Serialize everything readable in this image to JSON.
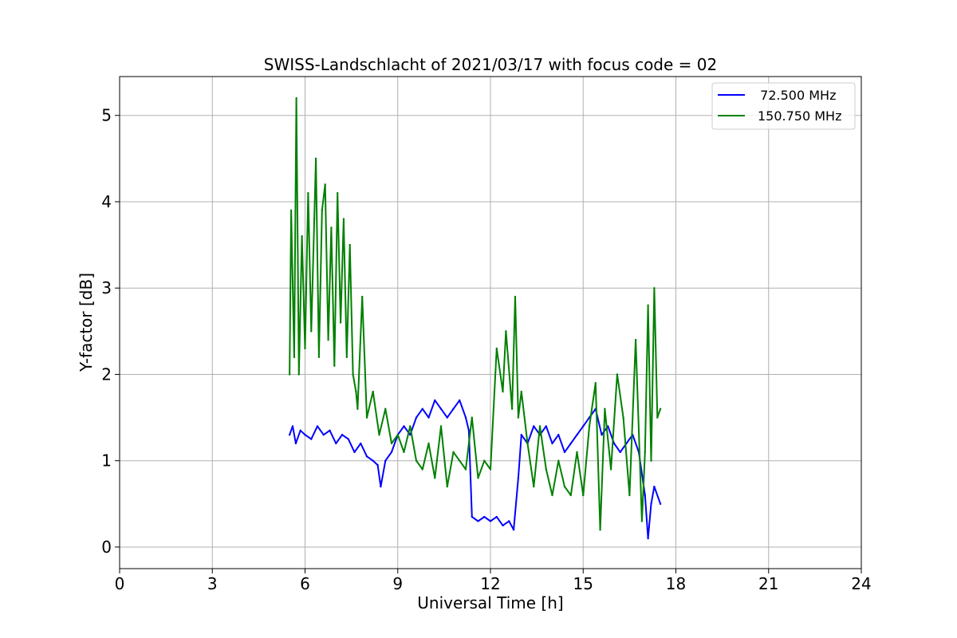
{
  "chart_data": {
    "type": "line",
    "title": "SWISS-Landschlacht of 2021/03/17 with focus code = 02",
    "xlabel": "Universal Time [h]",
    "ylabel": "Y-factor [dB]",
    "xlim": [
      0,
      24
    ],
    "ylim": [
      -0.25,
      5.45
    ],
    "xticks": [
      0,
      3,
      6,
      9,
      12,
      15,
      18,
      21,
      24
    ],
    "yticks": [
      0,
      1,
      2,
      3,
      4,
      5
    ],
    "grid": true,
    "legend_position": "top-right",
    "series": [
      {
        "name": "  72.500 MHz",
        "color": "#0000ff",
        "x": [
          5.5,
          5.6,
          5.7,
          5.85,
          6.0,
          6.2,
          6.4,
          6.6,
          6.8,
          7.0,
          7.2,
          7.4,
          7.6,
          7.8,
          8.0,
          8.2,
          8.35,
          8.45,
          8.6,
          8.8,
          9.0,
          9.2,
          9.4,
          9.6,
          9.8,
          10.0,
          10.2,
          10.4,
          10.6,
          10.8,
          11.0,
          11.2,
          11.3,
          11.4,
          11.6,
          11.8,
          12.0,
          12.2,
          12.4,
          12.6,
          12.75,
          12.9,
          13.0,
          13.2,
          13.4,
          13.6,
          13.8,
          14.0,
          14.2,
          14.4,
          14.6,
          14.8,
          15.0,
          15.2,
          15.4,
          15.6,
          15.8,
          16.0,
          16.2,
          16.4,
          16.6,
          16.8,
          17.0,
          17.1,
          17.2,
          17.3,
          17.5
        ],
        "values": [
          1.3,
          1.4,
          1.2,
          1.35,
          1.3,
          1.25,
          1.4,
          1.3,
          1.35,
          1.2,
          1.3,
          1.25,
          1.1,
          1.2,
          1.05,
          1.0,
          0.95,
          0.7,
          1.0,
          1.1,
          1.3,
          1.4,
          1.3,
          1.5,
          1.6,
          1.5,
          1.7,
          1.6,
          1.5,
          1.6,
          1.7,
          1.5,
          1.35,
          0.35,
          0.3,
          0.35,
          0.3,
          0.35,
          0.25,
          0.3,
          0.2,
          0.8,
          1.3,
          1.2,
          1.4,
          1.3,
          1.4,
          1.2,
          1.3,
          1.1,
          1.2,
          1.3,
          1.4,
          1.5,
          1.6,
          1.3,
          1.4,
          1.2,
          1.1,
          1.2,
          1.3,
          1.1,
          0.6,
          0.1,
          0.5,
          0.7,
          0.5
        ]
      },
      {
        "name": "150.750 MHz",
        "color": "#008000",
        "x": [
          5.5,
          5.55,
          5.65,
          5.72,
          5.8,
          5.9,
          6.0,
          6.1,
          6.2,
          6.3,
          6.35,
          6.45,
          6.55,
          6.65,
          6.75,
          6.85,
          6.95,
          7.05,
          7.15,
          7.25,
          7.35,
          7.45,
          7.55,
          7.65,
          7.7,
          7.85,
          8.0,
          8.2,
          8.4,
          8.6,
          8.8,
          9.0,
          9.2,
          9.4,
          9.6,
          9.8,
          10.0,
          10.2,
          10.4,
          10.6,
          10.8,
          11.0,
          11.2,
          11.4,
          11.6,
          11.8,
          12.0,
          12.2,
          12.4,
          12.5,
          12.7,
          12.8,
          12.9,
          13.0,
          13.2,
          13.4,
          13.6,
          13.8,
          14.0,
          14.2,
          14.4,
          14.6,
          14.8,
          15.0,
          15.2,
          15.4,
          15.55,
          15.7,
          15.9,
          16.1,
          16.3,
          16.5,
          16.7,
          16.9,
          17.0,
          17.1,
          17.2,
          17.3,
          17.4,
          17.5
        ],
        "values": [
          2.0,
          3.9,
          2.2,
          5.2,
          2.0,
          3.6,
          2.3,
          4.1,
          2.5,
          3.8,
          4.5,
          2.2,
          3.9,
          4.2,
          2.4,
          3.7,
          2.1,
          4.1,
          2.6,
          3.8,
          2.2,
          3.5,
          2.0,
          1.8,
          1.6,
          2.9,
          1.5,
          1.8,
          1.3,
          1.6,
          1.2,
          1.3,
          1.1,
          1.4,
          1.0,
          0.9,
          1.2,
          0.8,
          1.4,
          0.7,
          1.1,
          1.0,
          0.9,
          1.5,
          0.8,
          1.0,
          0.9,
          2.3,
          1.8,
          2.5,
          1.6,
          2.9,
          1.5,
          1.8,
          1.2,
          0.7,
          1.4,
          0.9,
          0.6,
          1.0,
          0.7,
          0.6,
          1.1,
          0.6,
          1.4,
          1.9,
          0.2,
          1.6,
          0.9,
          2.0,
          1.5,
          0.6,
          2.4,
          0.3,
          1.1,
          2.8,
          1.0,
          3.0,
          1.5,
          1.6
        ]
      }
    ]
  }
}
